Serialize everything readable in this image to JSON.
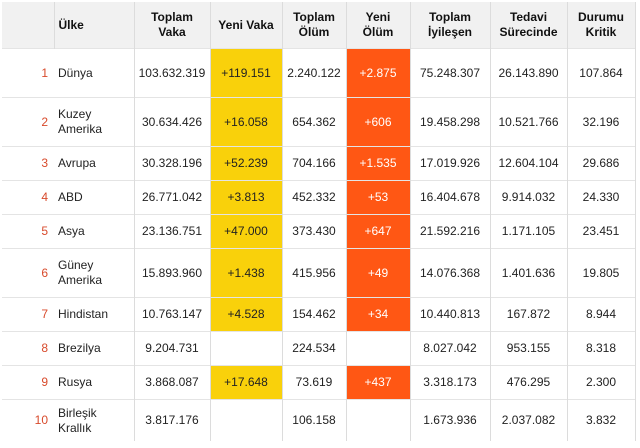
{
  "colors": {
    "new_cases": "#f9d10b",
    "new_deaths": "#ff5714",
    "rank": "#d84a2b",
    "header_bg": "#f1f1f1"
  },
  "table": {
    "headers": {
      "country": "Ülke",
      "total_cases": "Toplam Vaka",
      "new_cases": "Yeni Vaka",
      "total_deaths": "Toplam Ölüm",
      "new_deaths": "Yeni Ölüm",
      "total_recovered": "Toplam İyileşen",
      "active": "Tedavi Sürecinde",
      "critical": "Durumu Kritik"
    },
    "rows": [
      {
        "rank": "1",
        "country": "Dünya",
        "total_cases": "103.632.319",
        "new_cases": "+119.151",
        "total_deaths": "2.240.122",
        "new_deaths": "+2.875",
        "total_recovered": "75.248.307",
        "active": "26.143.890",
        "critical": "107.864"
      },
      {
        "rank": "2",
        "country": "Kuzey Amerika",
        "total_cases": "30.634.426",
        "new_cases": "+16.058",
        "total_deaths": "654.362",
        "new_deaths": "+606",
        "total_recovered": "19.458.298",
        "active": "10.521.766",
        "critical": "32.196"
      },
      {
        "rank": "3",
        "country": "Avrupa",
        "total_cases": "30.328.196",
        "new_cases": "+52.239",
        "total_deaths": "704.166",
        "new_deaths": "+1.535",
        "total_recovered": "17.019.926",
        "active": "12.604.104",
        "critical": "29.686"
      },
      {
        "rank": "4",
        "country": "ABD",
        "total_cases": "26.771.042",
        "new_cases": "+3.813",
        "total_deaths": "452.332",
        "new_deaths": "+53",
        "total_recovered": "16.404.678",
        "active": "9.914.032",
        "critical": "24.330"
      },
      {
        "rank": "5",
        "country": "Asya",
        "total_cases": "23.136.751",
        "new_cases": "+47.000",
        "total_deaths": "373.430",
        "new_deaths": "+647",
        "total_recovered": "21.592.216",
        "active": "1.171.105",
        "critical": "23.451"
      },
      {
        "rank": "6",
        "country": "Güney Amerika",
        "total_cases": "15.893.960",
        "new_cases": "+1.438",
        "total_deaths": "415.956",
        "new_deaths": "+49",
        "total_recovered": "14.076.368",
        "active": "1.401.636",
        "critical": "19.805"
      },
      {
        "rank": "7",
        "country": "Hindistan",
        "total_cases": "10.763.147",
        "new_cases": "+4.528",
        "total_deaths": "154.462",
        "new_deaths": "+34",
        "total_recovered": "10.440.813",
        "active": "167.872",
        "critical": "8.944"
      },
      {
        "rank": "8",
        "country": "Brezilya",
        "total_cases": "9.204.731",
        "new_cases": "",
        "total_deaths": "224.534",
        "new_deaths": "",
        "total_recovered": "8.027.042",
        "active": "953.155",
        "critical": "8.318"
      },
      {
        "rank": "9",
        "country": "Rusya",
        "total_cases": "3.868.087",
        "new_cases": "+17.648",
        "total_deaths": "73.619",
        "new_deaths": "+437",
        "total_recovered": "3.318.173",
        "active": "476.295",
        "critical": "2.300"
      },
      {
        "rank": "10",
        "country": "Birleşik Krallık",
        "total_cases": "3.817.176",
        "new_cases": "",
        "total_deaths": "106.158",
        "new_deaths": "",
        "total_recovered": "1.673.936",
        "active": "2.037.082",
        "critical": "3.832"
      }
    ]
  }
}
